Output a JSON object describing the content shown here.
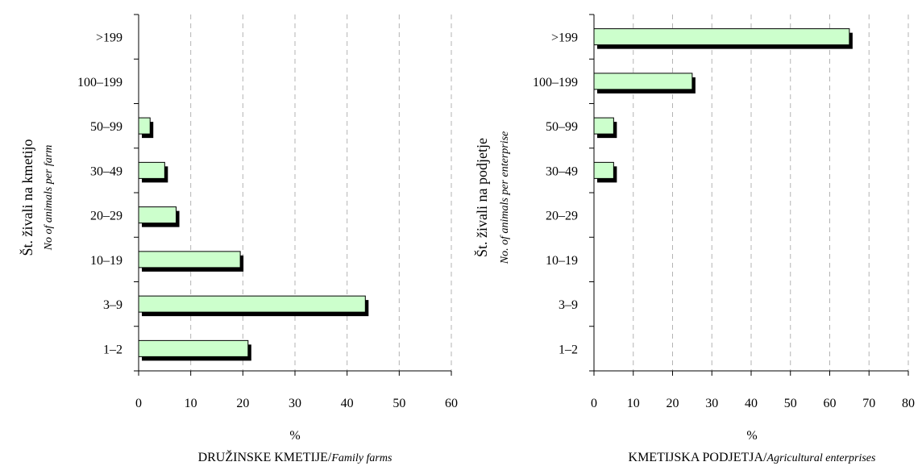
{
  "chart_data": [
    {
      "type": "bar",
      "orientation": "horizontal",
      "categories": [
        "1–2",
        "3–9",
        "10–19",
        "20–29",
        "30–49",
        "50–99",
        "100–199",
        ">199"
      ],
      "values": [
        21,
        43.5,
        19.5,
        7.2,
        5,
        2.2,
        0,
        0
      ],
      "xlim": [
        0,
        60
      ],
      "xticks": [
        0,
        10,
        20,
        30,
        40,
        50,
        60
      ],
      "grid": "vertical-dashed",
      "bar_color": "#ccffcc",
      "shadow_color": "#000000",
      "ylabel": "Št. živali na kmetijo",
      "ylabel_sub": "No of animals per farm",
      "xlabel": "%",
      "caption": "DRUŽINSKE KMETIJE/",
      "caption_sub": "Family farms"
    },
    {
      "type": "bar",
      "orientation": "horizontal",
      "categories": [
        "1–2",
        "3–9",
        "10–19",
        "20–29",
        "30–49",
        "50–99",
        "100–199",
        ">199"
      ],
      "values": [
        0,
        0,
        0,
        0,
        5,
        5,
        25,
        65
      ],
      "xlim": [
        0,
        80
      ],
      "xticks": [
        0,
        10,
        20,
        30,
        40,
        50,
        60,
        70,
        80
      ],
      "grid": "vertical-dashed",
      "bar_color": "#ccffcc",
      "shadow_color": "#000000",
      "ylabel": "Št. živali na podjetje",
      "ylabel_sub": "No. of animals per enterprise",
      "xlabel": "%",
      "caption": "KMETIJSKA PODJETJA/",
      "caption_sub": "Agricultural enterprises"
    }
  ]
}
